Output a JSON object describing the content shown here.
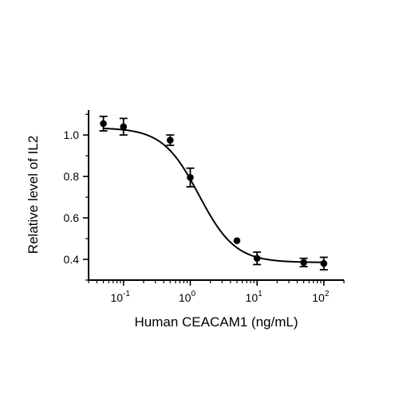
{
  "chart_data": {
    "type": "scatter",
    "xlabel": "Human CEACAM1 (ng/mL)",
    "ylabel": "Relative level of IL2",
    "xscale": "log",
    "xlim": [
      0.03,
      200
    ],
    "ylim": [
      0.3,
      1.12
    ],
    "x_ticks": [
      {
        "value": 0.1,
        "base": "10",
        "exp": "-1"
      },
      {
        "value": 1,
        "base": "10",
        "exp": "0"
      },
      {
        "value": 10,
        "base": "10",
        "exp": "1"
      },
      {
        "value": 100,
        "base": "10",
        "exp": "2"
      }
    ],
    "y_ticks": [
      {
        "value": 0.4,
        "label": "0.4"
      },
      {
        "value": 0.6,
        "label": "0.6"
      },
      {
        "value": 0.8,
        "label": "0.8"
      },
      {
        "value": 1.0,
        "label": "1.0"
      }
    ],
    "points": [
      {
        "x": 0.05,
        "y": 1.055,
        "err": 0.035
      },
      {
        "x": 0.1,
        "y": 1.04,
        "err": 0.04
      },
      {
        "x": 0.5,
        "y": 0.975,
        "err": 0.025
      },
      {
        "x": 1,
        "y": 0.795,
        "err": 0.045
      },
      {
        "x": 5,
        "y": 0.49,
        "err": 0
      },
      {
        "x": 10,
        "y": 0.405,
        "err": 0.03
      },
      {
        "x": 50,
        "y": 0.385,
        "err": 0.02
      },
      {
        "x": 100,
        "y": 0.38,
        "err": 0.03
      }
    ],
    "fit": {
      "model": "four-parameter logistic",
      "top": 1.035,
      "bottom": 0.385,
      "ec50": 1.35,
      "hill": 1.6
    },
    "grid": false,
    "legend": "none",
    "colors": {
      "points": "#000000",
      "curve": "#000000"
    }
  }
}
